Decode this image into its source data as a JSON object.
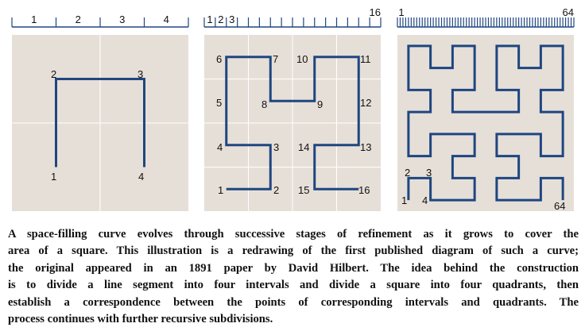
{
  "colors": {
    "panel_bg": "#e6dfd8",
    "curve": "#1e4680",
    "grid": "#ffffff",
    "ruler": "#1e4680"
  },
  "panel1": {
    "ruler_labels": [
      "1",
      "2",
      "3",
      "4"
    ],
    "point_labels": [
      "1",
      "2",
      "3",
      "4"
    ]
  },
  "panel2": {
    "ruler_labels": {
      "first": "1",
      "second": "2",
      "third": "3",
      "last": "16"
    },
    "point_labels": [
      "1",
      "2",
      "3",
      "4",
      "5",
      "6",
      "7",
      "8",
      "9",
      "10",
      "11",
      "12",
      "13",
      "14",
      "15",
      "16"
    ]
  },
  "panel3": {
    "ruler_labels": {
      "first": "1",
      "last": "64"
    },
    "point_labels": {
      "p1": "1",
      "p2": "2",
      "p3": "3",
      "p4": "4",
      "p64": "64"
    }
  },
  "caption": {
    "lines": [
      "A space-filling curve evolves through successive stages of refinement as it grows to cover the",
      "area of a square. This illustration is a redrawing of the first published diagram of such a curve;",
      "the original appeared in an 1891 paper by David Hilbert. The idea behind the construction",
      "is to divide a line segment into four intervals and divide a square into four quadrants, then",
      "establish a correspondence between the points of corresponding intervals and quadrants. The",
      "process continues with further recursive subdivisions."
    ]
  }
}
